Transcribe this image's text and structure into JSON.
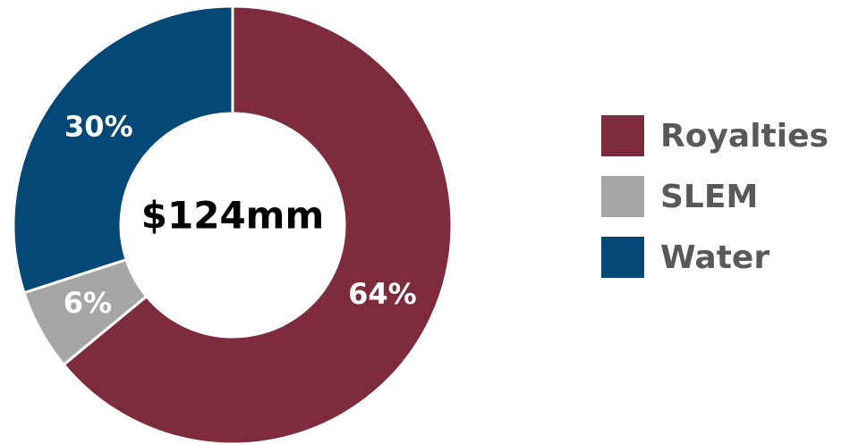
{
  "chart_data": {
    "type": "pie",
    "center_text": "$124mm",
    "slices": [
      {
        "name": "Royalties",
        "value": 64,
        "label": "64%",
        "color": "#7E2C3D"
      },
      {
        "name": "SLEM",
        "value": 6,
        "label": "6%",
        "color": "#A6A6A6"
      },
      {
        "name": "Water",
        "value": 30,
        "label": "30%",
        "color": "#044878"
      }
    ],
    "legend_position": "right"
  }
}
